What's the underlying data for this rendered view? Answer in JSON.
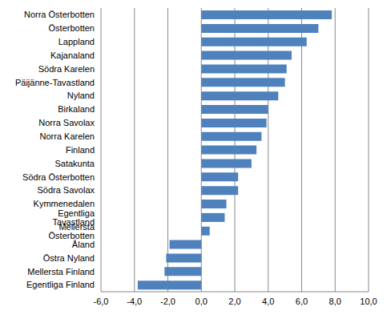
{
  "chart_data": {
    "type": "bar",
    "orientation": "horizontal",
    "categories": [
      "Norra Österbotten",
      "Österbotten",
      "Lappland",
      "Kajanaland",
      "Södra Karelen",
      "Päijänne-Tavastland",
      "Nyland",
      "Birkaland",
      "Norra Savolax",
      "Norra Karelen",
      "Finland",
      "Satakunta",
      "Södra Österbotten",
      "Södra Savolax",
      "Kymmenedalen",
      "Egentliga Tavastland",
      "Mellersta Österbotten",
      "Åland",
      "Östra Nyland",
      "Mellersta Finland",
      "Egentliga Finland"
    ],
    "values": [
      7.8,
      7.0,
      6.3,
      5.4,
      5.1,
      5.0,
      4.6,
      4.0,
      3.9,
      3.6,
      3.3,
      3.0,
      2.2,
      2.2,
      1.5,
      1.4,
      0.5,
      -1.9,
      -2.1,
      -2.2,
      -3.8
    ],
    "color": "#4f81bd",
    "xlim": [
      -6,
      10
    ],
    "xticks": [
      {
        "value": -6,
        "label": "-6,0"
      },
      {
        "value": -4,
        "label": "-4,0"
      },
      {
        "value": -2,
        "label": "-2,0"
      },
      {
        "value": 0,
        "label": "0,0"
      },
      {
        "value": 2,
        "label": "2,0"
      },
      {
        "value": 4,
        "label": "4,0"
      },
      {
        "value": 6,
        "label": "6,0"
      },
      {
        "value": 8,
        "label": "8,0"
      },
      {
        "value": 10,
        "label": "10,0"
      }
    ],
    "grid": true
  }
}
